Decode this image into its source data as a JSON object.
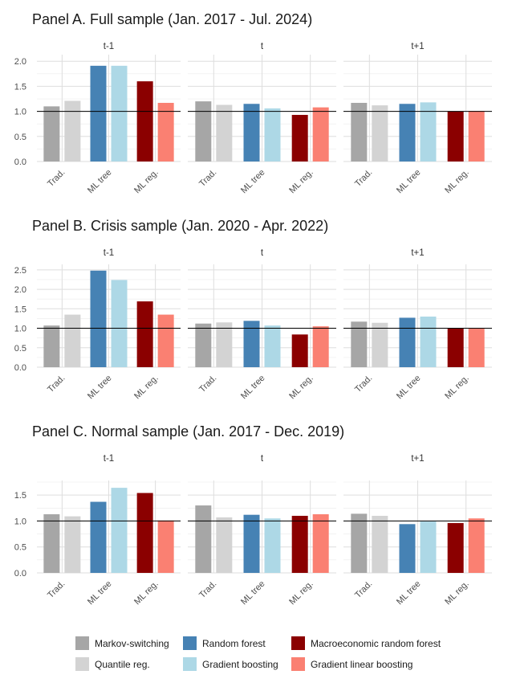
{
  "legend": [
    {
      "name": "Markov-switching",
      "color": "#A6A6A6"
    },
    {
      "name": "Quantile reg.",
      "color": "#D3D3D3"
    },
    {
      "name": "Random forest",
      "color": "#4682B4"
    },
    {
      "name": "Gradient boosting",
      "color": "#ADD8E6"
    },
    {
      "name": "Macroeconomic random forest",
      "color": "#8B0000"
    },
    {
      "name": "Gradient linear boosting",
      "color": "#FA8072"
    }
  ],
  "chart_data": [
    {
      "type": "bar",
      "title": "Panel A. Full sample (Jan. 2017 - Jul. 2024)",
      "facets": [
        "t-1",
        "t",
        "t+1"
      ],
      "groups": [
        "Trad.",
        "ML tree",
        "ML reg."
      ],
      "series": [
        {
          "name": "Markov-switching",
          "group": "Trad.",
          "values": [
            1.1,
            1.2,
            1.17
          ]
        },
        {
          "name": "Quantile reg.",
          "group": "Trad.",
          "values": [
            1.21,
            1.13,
            1.12
          ]
        },
        {
          "name": "Random forest",
          "group": "ML tree",
          "values": [
            1.91,
            1.15,
            1.15
          ]
        },
        {
          "name": "Gradient boosting",
          "group": "ML tree",
          "values": [
            1.91,
            1.06,
            1.18
          ]
        },
        {
          "name": "Macroeconomic random forest",
          "group": "ML reg.",
          "values": [
            1.6,
            0.93,
            1.0
          ]
        },
        {
          "name": "Gradient linear boosting",
          "group": "ML reg.",
          "values": [
            1.17,
            1.08,
            1.01
          ]
        }
      ],
      "yticks": [
        0.0,
        0.5,
        1.0,
        1.5,
        2.0
      ],
      "ytick_labels": [
        "0.0",
        "0.5",
        "1.0",
        "1.5",
        "2.0"
      ],
      "ylim": [
        0,
        2.1
      ],
      "hline": 1.0,
      "grid": true,
      "legend": "bottom"
    },
    {
      "type": "bar",
      "title": "Panel B. Crisis sample (Jan. 2020 - Apr. 2022)",
      "facets": [
        "t-1",
        "t",
        "t+1"
      ],
      "groups": [
        "Trad.",
        "ML tree",
        "ML reg."
      ],
      "series": [
        {
          "name": "Markov-switching",
          "group": "Trad.",
          "values": [
            1.07,
            1.12,
            1.17
          ]
        },
        {
          "name": "Quantile reg.",
          "group": "Trad.",
          "values": [
            1.35,
            1.15,
            1.14
          ]
        },
        {
          "name": "Random forest",
          "group": "ML tree",
          "values": [
            2.48,
            1.19,
            1.27
          ]
        },
        {
          "name": "Gradient boosting",
          "group": "ML tree",
          "values": [
            2.24,
            1.07,
            1.3
          ]
        },
        {
          "name": "Macroeconomic random forest",
          "group": "ML reg.",
          "values": [
            1.69,
            0.84,
            1.0
          ]
        },
        {
          "name": "Gradient linear boosting",
          "group": "ML reg.",
          "values": [
            1.35,
            1.05,
            0.99
          ]
        }
      ],
      "yticks": [
        0.0,
        0.5,
        1.0,
        1.5,
        2.0,
        2.5
      ],
      "ytick_labels": [
        "0.0",
        "0.5",
        "1.0",
        "1.5",
        "2.0",
        "2.5"
      ],
      "ylim": [
        0,
        2.6
      ],
      "hline": 1.0,
      "grid": true,
      "legend": "bottom"
    },
    {
      "type": "bar",
      "title": "Panel C. Normal sample (Jan. 2017 - Dec. 2019)",
      "facets": [
        "t-1",
        "t",
        "t+1"
      ],
      "groups": [
        "Trad.",
        "ML tree",
        "ML reg."
      ],
      "series": [
        {
          "name": "Markov-switching",
          "group": "Trad.",
          "values": [
            1.13,
            1.3,
            1.14
          ]
        },
        {
          "name": "Quantile reg.",
          "group": "Trad.",
          "values": [
            1.09,
            1.07,
            1.1
          ]
        },
        {
          "name": "Random forest",
          "group": "ML tree",
          "values": [
            1.37,
            1.12,
            0.94
          ]
        },
        {
          "name": "Gradient boosting",
          "group": "ML tree",
          "values": [
            1.64,
            1.05,
            0.99
          ]
        },
        {
          "name": "Macroeconomic random forest",
          "group": "ML reg.",
          "values": [
            1.54,
            1.1,
            0.96
          ]
        },
        {
          "name": "Gradient linear boosting",
          "group": "ML reg.",
          "values": [
            1.01,
            1.13,
            1.05
          ]
        }
      ],
      "yticks": [
        0.0,
        0.5,
        1.0,
        1.5
      ],
      "ytick_labels": [
        "0.0",
        "0.5",
        "1.0",
        "1.5"
      ],
      "ylim": [
        0,
        1.75
      ],
      "hline": 1.0,
      "grid": true,
      "legend": "bottom"
    }
  ]
}
